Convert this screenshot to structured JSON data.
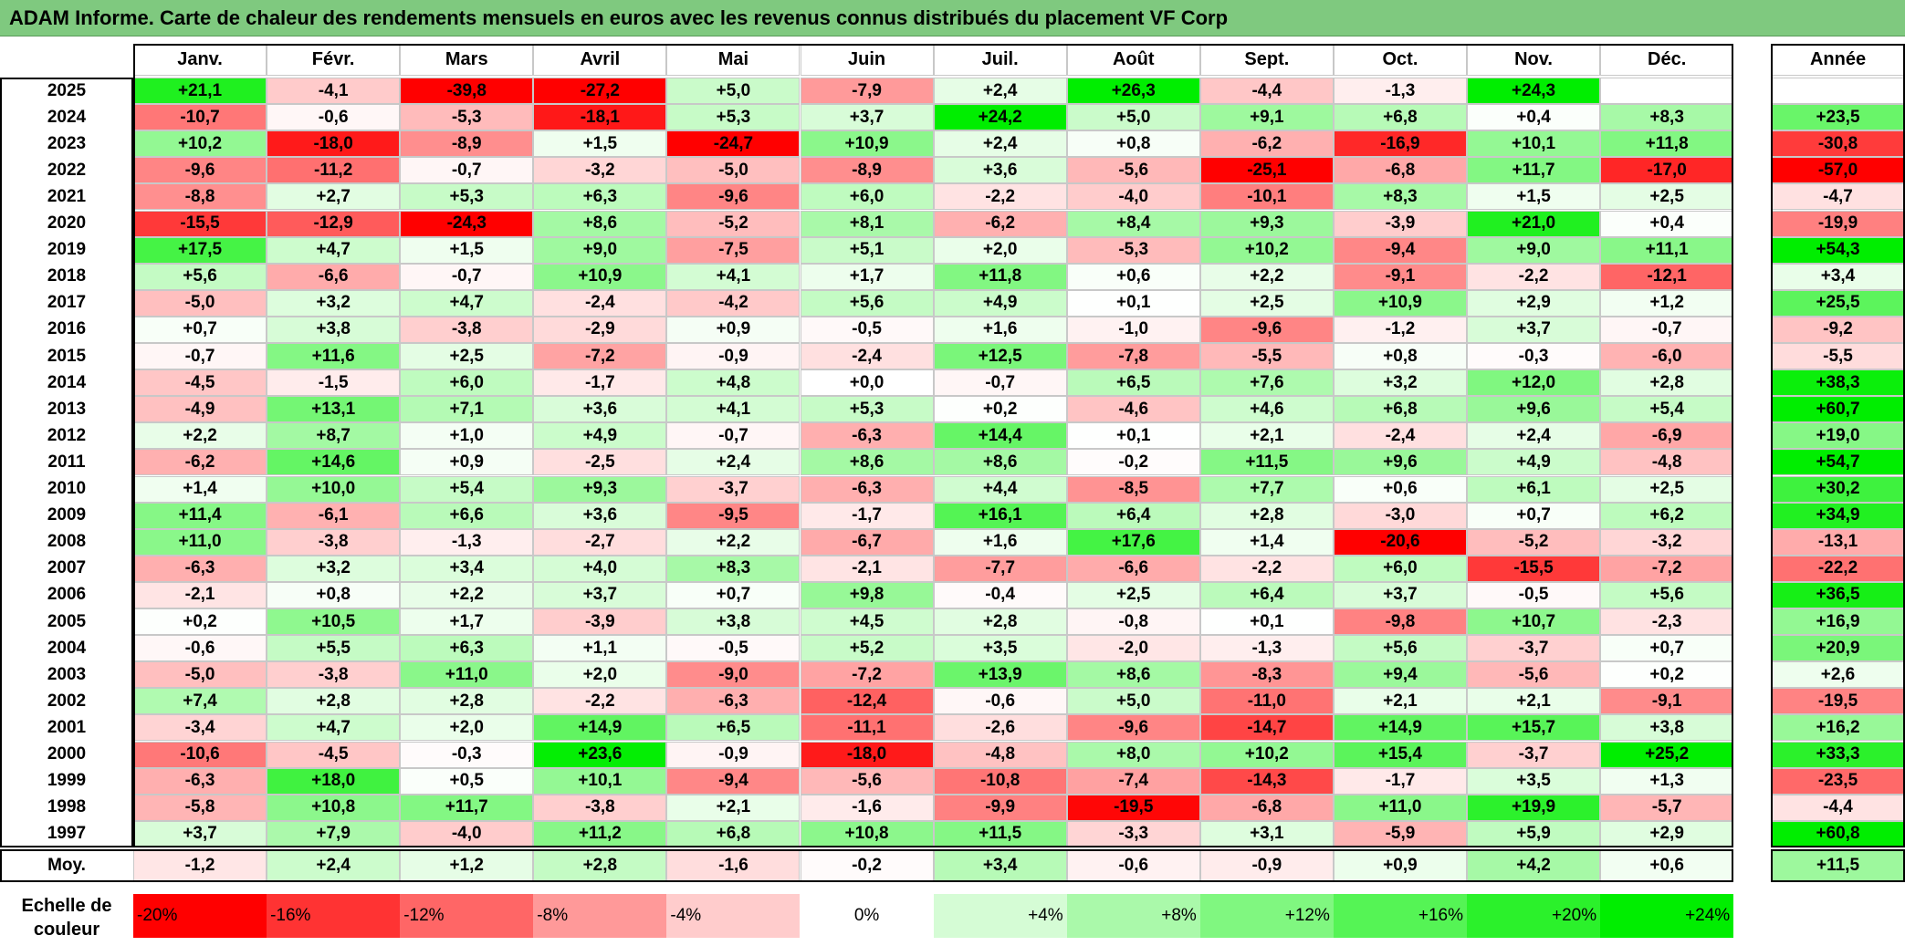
{
  "chart_data": {
    "type": "heatmap",
    "title": "ADAM Informe. Carte de chaleur des rendements mensuels en euros avec les revenus connus distribués du placement VF Corp",
    "columns": [
      "Janv.",
      "Févr.",
      "Mars",
      "Avril",
      "Mai",
      "Juin",
      "Juil.",
      "Août",
      "Sept.",
      "Oct.",
      "Nov.",
      "Déc."
    ],
    "year_column": "Année",
    "rows": [
      {
        "year": "2025",
        "values": [
          "+21,1",
          "-4,1",
          "-39,8",
          "-27,2",
          "+5,0",
          "-7,9",
          "+2,4",
          "+26,3",
          "-4,4",
          "-1,3",
          "+24,3",
          ""
        ],
        "annual": ""
      },
      {
        "year": "2024",
        "values": [
          "-10,7",
          "-0,6",
          "-5,3",
          "-18,1",
          "+5,3",
          "+3,7",
          "+24,2",
          "+5,0",
          "+9,1",
          "+6,8",
          "+0,4",
          "+8,3"
        ],
        "annual": "+23,5"
      },
      {
        "year": "2023",
        "values": [
          "+10,2",
          "-18,0",
          "-8,9",
          "+1,5",
          "-24,7",
          "+10,9",
          "+2,4",
          "+0,8",
          "-6,2",
          "-16,9",
          "+10,1",
          "+11,8"
        ],
        "annual": "-30,8"
      },
      {
        "year": "2022",
        "values": [
          "-9,6",
          "-11,2",
          "-0,7",
          "-3,2",
          "-5,0",
          "-8,9",
          "+3,6",
          "-5,6",
          "-25,1",
          "-6,8",
          "+11,7",
          "-17,0"
        ],
        "annual": "-57,0"
      },
      {
        "year": "2021",
        "values": [
          "-8,8",
          "+2,7",
          "+5,3",
          "+6,3",
          "-9,6",
          "+6,0",
          "-2,2",
          "-4,0",
          "-10,1",
          "+8,3",
          "+1,5",
          "+2,5"
        ],
        "annual": "-4,7"
      },
      {
        "year": "2020",
        "values": [
          "-15,5",
          "-12,9",
          "-24,3",
          "+8,6",
          "-5,2",
          "+8,1",
          "-6,2",
          "+8,4",
          "+9,3",
          "-3,9",
          "+21,0",
          "+0,4"
        ],
        "annual": "-19,9"
      },
      {
        "year": "2019",
        "values": [
          "+17,5",
          "+4,7",
          "+1,5",
          "+9,0",
          "-7,5",
          "+5,1",
          "+2,0",
          "-5,3",
          "+10,2",
          "-9,4",
          "+9,0",
          "+11,1"
        ],
        "annual": "+54,3"
      },
      {
        "year": "2018",
        "values": [
          "+5,6",
          "-6,6",
          "-0,7",
          "+10,9",
          "+4,1",
          "+1,7",
          "+11,8",
          "+0,6",
          "+2,2",
          "-9,1",
          "-2,2",
          "-12,1"
        ],
        "annual": "+3,4"
      },
      {
        "year": "2017",
        "values": [
          "-5,0",
          "+3,2",
          "+4,7",
          "-2,4",
          "-4,2",
          "+5,6",
          "+4,9",
          "+0,1",
          "+2,5",
          "+10,9",
          "+2,9",
          "+1,2"
        ],
        "annual": "+25,5"
      },
      {
        "year": "2016",
        "values": [
          "+0,7",
          "+3,8",
          "-3,8",
          "-2,9",
          "+0,9",
          "-0,5",
          "+1,6",
          "-1,0",
          "-9,6",
          "-1,2",
          "+3,7",
          "-0,7"
        ],
        "annual": "-9,2"
      },
      {
        "year": "2015",
        "values": [
          "-0,7",
          "+11,6",
          "+2,5",
          "-7,2",
          "-0,9",
          "-2,4",
          "+12,5",
          "-7,8",
          "-5,5",
          "+0,8",
          "-0,3",
          "-6,0"
        ],
        "annual": "-5,5"
      },
      {
        "year": "2014",
        "values": [
          "-4,5",
          "-1,5",
          "+6,0",
          "-1,7",
          "+4,8",
          "+0,0",
          "-0,7",
          "+6,5",
          "+7,6",
          "+3,2",
          "+12,0",
          "+2,8"
        ],
        "annual": "+38,3"
      },
      {
        "year": "2013",
        "values": [
          "-4,9",
          "+13,1",
          "+7,1",
          "+3,6",
          "+4,1",
          "+5,3",
          "+0,2",
          "-4,6",
          "+4,6",
          "+6,8",
          "+9,6",
          "+5,4"
        ],
        "annual": "+60,7"
      },
      {
        "year": "2012",
        "values": [
          "+2,2",
          "+8,7",
          "+1,0",
          "+4,9",
          "-0,7",
          "-6,3",
          "+14,4",
          "+0,1",
          "+2,1",
          "-2,4",
          "+2,4",
          "-6,9"
        ],
        "annual": "+19,0"
      },
      {
        "year": "2011",
        "values": [
          "-6,2",
          "+14,6",
          "+0,9",
          "-2,5",
          "+2,4",
          "+8,6",
          "+8,6",
          "-0,2",
          "+11,5",
          "+9,6",
          "+4,9",
          "-4,8"
        ],
        "annual": "+54,7"
      },
      {
        "year": "2010",
        "values": [
          "+1,4",
          "+10,0",
          "+5,4",
          "+9,3",
          "-3,7",
          "-6,3",
          "+4,4",
          "-8,5",
          "+7,7",
          "+0,6",
          "+6,1",
          "+2,5"
        ],
        "annual": "+30,2"
      },
      {
        "year": "2009",
        "values": [
          "+11,4",
          "-6,1",
          "+6,6",
          "+3,6",
          "-9,5",
          "-1,7",
          "+16,1",
          "+6,4",
          "+2,8",
          "-3,0",
          "+0,7",
          "+6,2"
        ],
        "annual": "+34,9"
      },
      {
        "year": "2008",
        "values": [
          "+11,0",
          "-3,8",
          "-1,3",
          "-2,7",
          "+2,2",
          "-6,7",
          "+1,6",
          "+17,6",
          "+1,4",
          "-20,6",
          "-5,2",
          "-3,2"
        ],
        "annual": "-13,1"
      },
      {
        "year": "2007",
        "values": [
          "-6,3",
          "+3,2",
          "+3,4",
          "+4,0",
          "+8,3",
          "-2,1",
          "-7,7",
          "-6,6",
          "-2,2",
          "+6,0",
          "-15,5",
          "-7,2"
        ],
        "annual": "-22,2"
      },
      {
        "year": "2006",
        "values": [
          "-2,1",
          "+0,8",
          "+2,2",
          "+3,7",
          "+0,7",
          "+9,8",
          "-0,4",
          "+2,5",
          "+6,4",
          "+3,7",
          "-0,5",
          "+5,6"
        ],
        "annual": "+36,5"
      },
      {
        "year": "2005",
        "values": [
          "+0,2",
          "+10,5",
          "+1,7",
          "-3,9",
          "+3,8",
          "+4,5",
          "+2,8",
          "-0,8",
          "+0,1",
          "-9,8",
          "+10,7",
          "-2,3"
        ],
        "annual": "+16,9"
      },
      {
        "year": "2004",
        "values": [
          "-0,6",
          "+5,5",
          "+6,3",
          "+1,1",
          "-0,5",
          "+5,2",
          "+3,5",
          "-2,0",
          "-1,3",
          "+5,6",
          "-3,7",
          "+0,7"
        ],
        "annual": "+20,9"
      },
      {
        "year": "2003",
        "values": [
          "-5,0",
          "-3,8",
          "+11,0",
          "+2,0",
          "-9,0",
          "-7,2",
          "+13,9",
          "+8,6",
          "-8,3",
          "+9,4",
          "-5,6",
          "+0,2"
        ],
        "annual": "+2,6"
      },
      {
        "year": "2002",
        "values": [
          "+7,4",
          "+2,8",
          "+2,8",
          "-2,2",
          "-6,3",
          "-12,4",
          "-0,6",
          "+5,0",
          "-11,0",
          "+2,1",
          "+2,1",
          "-9,1"
        ],
        "annual": "-19,5"
      },
      {
        "year": "2001",
        "values": [
          "-3,4",
          "+4,7",
          "+2,0",
          "+14,9",
          "+6,5",
          "-11,1",
          "-2,6",
          "-9,6",
          "-14,7",
          "+14,9",
          "+15,7",
          "+3,8"
        ],
        "annual": "+16,2"
      },
      {
        "year": "2000",
        "values": [
          "-10,6",
          "-4,5",
          "-0,3",
          "+23,6",
          "-0,9",
          "-18,0",
          "-4,8",
          "+8,0",
          "+10,2",
          "+15,4",
          "-3,7",
          "+25,2"
        ],
        "annual": "+33,3"
      },
      {
        "year": "1999",
        "values": [
          "-6,3",
          "+18,0",
          "+0,5",
          "+10,1",
          "-9,4",
          "-5,6",
          "-10,8",
          "-7,4",
          "-14,3",
          "-1,7",
          "+3,5",
          "+1,3"
        ],
        "annual": "-23,5"
      },
      {
        "year": "1998",
        "values": [
          "-5,8",
          "+10,8",
          "+11,7",
          "-3,8",
          "+2,1",
          "-1,6",
          "-9,9",
          "-19,5",
          "-6,8",
          "+11,0",
          "+19,9",
          "-5,7"
        ],
        "annual": "-4,4"
      },
      {
        "year": "1997",
        "values": [
          "+3,7",
          "+7,9",
          "-4,0",
          "+11,2",
          "+6,8",
          "+10,8",
          "+11,5",
          "-3,3",
          "+3,1",
          "-5,9",
          "+5,9",
          "+2,9"
        ],
        "annual": "+60,8"
      }
    ],
    "average_label": "Moy.",
    "averages": [
      "-1,2",
      "+2,4",
      "+1,2",
      "+2,8",
      "-1,6",
      "-0,2",
      "+3,4",
      "-0,6",
      "-0,9",
      "+0,9",
      "+4,2",
      "+0,6"
    ],
    "average_annual": "+11,5",
    "color_scale_label": [
      "Echelle de",
      "couleur"
    ],
    "color_scale": [
      "-20%",
      "-16%",
      "-12%",
      "-8%",
      "-4%",
      "0%",
      "+4%",
      "+8%",
      "+12%",
      "+16%",
      "+20%",
      "+24%"
    ],
    "colors": {
      "negative_max": "#ff0000",
      "zero": "#ffffff",
      "positive_max": "#00ee00",
      "header_bg": "#7fc97f"
    }
  }
}
